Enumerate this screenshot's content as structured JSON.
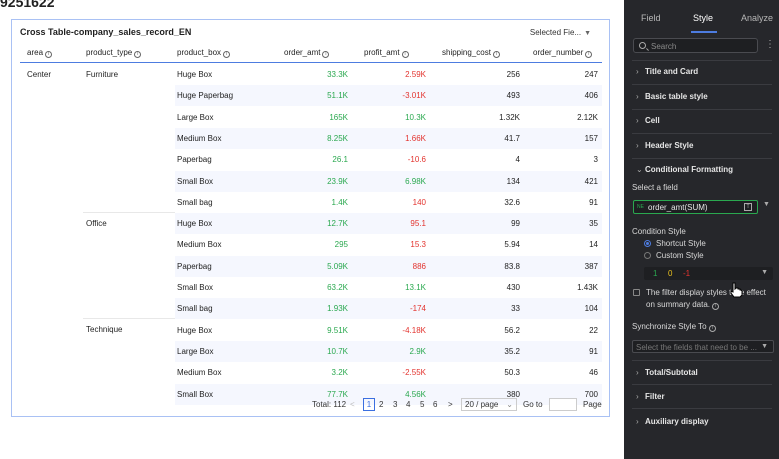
{
  "page_id": "9251622",
  "table": {
    "title": "Cross Table-company_sales_record_EN",
    "selected_fields": "Selected Fie...",
    "headers": [
      "area",
      "product_type",
      "product_box",
      "order_amt",
      "profit_amt",
      "shipping_cost",
      "order_number"
    ],
    "rows": [
      {
        "product_box": "Huge Box",
        "order_amt": "33.3K",
        "profit_amt": "2.59K",
        "shipping_cost": "256",
        "order_number": "247",
        "profit_color": "red",
        "amt_color": "green"
      },
      {
        "product_box": "Huge Paperbag",
        "order_amt": "51.1K",
        "profit_amt": "-3.01K",
        "shipping_cost": "493",
        "order_number": "406",
        "profit_color": "red",
        "amt_color": "green"
      },
      {
        "product_box": "Large Box",
        "order_amt": "165K",
        "profit_amt": "10.3K",
        "shipping_cost": "1.32K",
        "order_number": "2.12K",
        "profit_color": "green",
        "amt_color": "green"
      },
      {
        "product_box": "Medium Box",
        "order_amt": "8.25K",
        "profit_amt": "1.66K",
        "shipping_cost": "41.7",
        "order_number": "157",
        "profit_color": "red",
        "amt_color": "green"
      },
      {
        "product_box": "Paperbag",
        "order_amt": "26.1",
        "profit_amt": "-10.6",
        "shipping_cost": "4",
        "order_number": "3",
        "profit_color": "red",
        "amt_color": "green"
      },
      {
        "product_box": "Small Box",
        "order_amt": "23.9K",
        "profit_amt": "6.98K",
        "shipping_cost": "134",
        "order_number": "421",
        "profit_color": "green",
        "amt_color": "green"
      },
      {
        "product_box": "Small bag",
        "order_amt": "1.4K",
        "profit_amt": "140",
        "shipping_cost": "32.6",
        "order_number": "91",
        "profit_color": "red",
        "amt_color": "green"
      },
      {
        "product_box": "Huge Box",
        "order_amt": "12.7K",
        "profit_amt": "95.1",
        "shipping_cost": "99",
        "order_number": "35",
        "profit_color": "red",
        "amt_color": "green"
      },
      {
        "product_box": "Medium Box",
        "order_amt": "295",
        "profit_amt": "15.3",
        "shipping_cost": "5.94",
        "order_number": "14",
        "profit_color": "red",
        "amt_color": "green"
      },
      {
        "product_box": "Paperbag",
        "order_amt": "5.09K",
        "profit_amt": "886",
        "shipping_cost": "83.8",
        "order_number": "387",
        "profit_color": "red",
        "amt_color": "green"
      },
      {
        "product_box": "Small Box",
        "order_amt": "63.2K",
        "profit_amt": "13.1K",
        "shipping_cost": "430",
        "order_number": "1.43K",
        "profit_color": "green",
        "amt_color": "green"
      },
      {
        "product_box": "Small bag",
        "order_amt": "1.93K",
        "profit_amt": "-174",
        "shipping_cost": "33",
        "order_number": "104",
        "profit_color": "red",
        "amt_color": "green"
      },
      {
        "product_box": "Huge Box",
        "order_amt": "9.51K",
        "profit_amt": "-4.18K",
        "shipping_cost": "56.2",
        "order_number": "22",
        "profit_color": "red",
        "amt_color": "green"
      },
      {
        "product_box": "Large Box",
        "order_amt": "10.7K",
        "profit_amt": "2.9K",
        "shipping_cost": "35.2",
        "order_number": "91",
        "profit_color": "green",
        "amt_color": "green"
      },
      {
        "product_box": "Medium Box",
        "order_amt": "3.2K",
        "profit_amt": "-2.55K",
        "shipping_cost": "50.3",
        "order_number": "46",
        "profit_color": "red",
        "amt_color": "green"
      },
      {
        "product_box": "Small Box",
        "order_amt": "77.7K",
        "profit_amt": "4.56K",
        "shipping_cost": "380",
        "order_number": "700",
        "profit_color": "green",
        "amt_color": "green"
      }
    ],
    "areas": [
      {
        "label": "Center"
      }
    ],
    "product_types": [
      {
        "label": "Furniture"
      },
      {
        "label": "Office"
      },
      {
        "label": "Technique"
      }
    ]
  },
  "pagination": {
    "total": "Total: 112",
    "prev": "<",
    "pages": [
      "1",
      "2",
      "3",
      "4",
      "5",
      "6"
    ],
    "next": ">",
    "per_page": "20 / page",
    "goto": "Go to",
    "page_word": "Page"
  },
  "panel": {
    "tabs": [
      "Field",
      "Style",
      "Analyze"
    ],
    "search_placeholder": "Search",
    "more": "⋮",
    "sections_top": [
      "Title and Card",
      "Basic table style",
      "Cell",
      "Header Style"
    ],
    "conditional_formatting": "Conditional Formatting",
    "select_field_label": "Select a field",
    "field_tag": "NE",
    "field_value": "order_amt(SUM)",
    "condition_style_label": "Condition Style",
    "radio_shortcut": "Shortcut Style",
    "radio_custom": "Custom Style",
    "cond_values": [
      "1",
      "0",
      "-1"
    ],
    "filter_text": "The filter display styles take effect on summary data.",
    "sync_label": "Synchronize Style To",
    "sync_placeholder": "Select the fields that need to be ...",
    "sections_bottom": [
      "Total/Subtotal",
      "Filter",
      "Auxiliary display"
    ],
    "colors": {
      "accent": "#4d7ce0",
      "green": "#2aa84f",
      "yellow": "#e8c01e",
      "red": "#e3342f"
    }
  }
}
